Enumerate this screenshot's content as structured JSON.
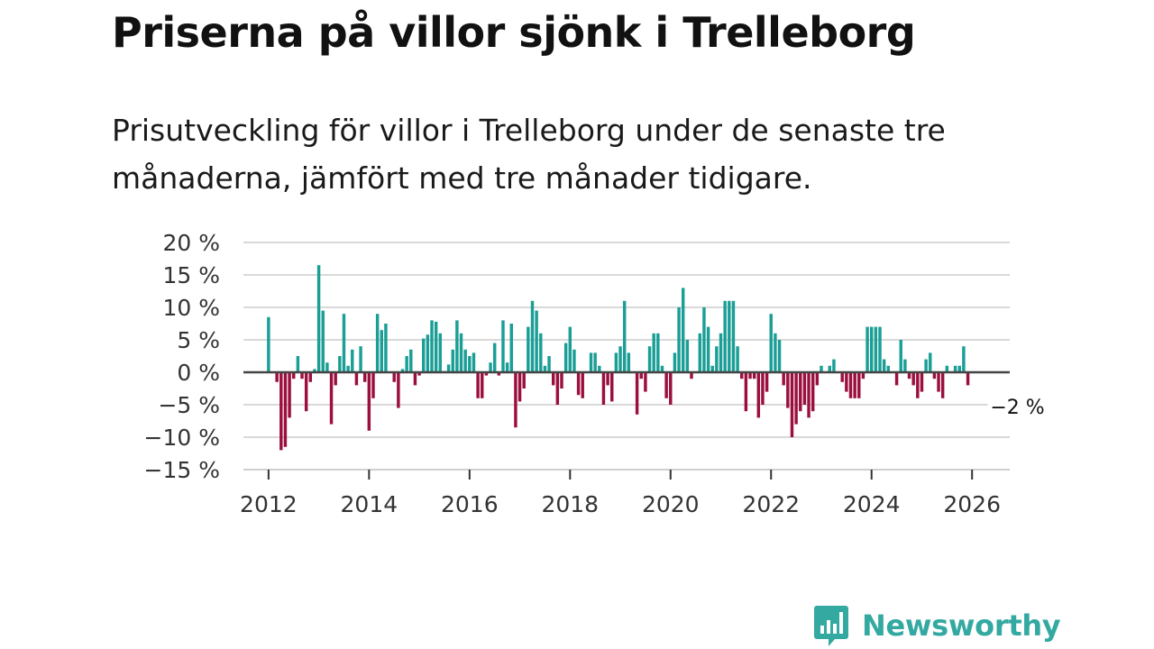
{
  "title": "Priserna på villor sjönk i Trelleborg",
  "subtitle": "Prisutveckling för villor i Trelleborg under de senaste tre månaderna, jämfört med tre månader tidigare.",
  "brand": {
    "name": "Newsworthy",
    "icon": "newsworthy-bar-chart-icon"
  },
  "chart_data": {
    "type": "bar",
    "title": "Priserna på villor sjönk i Trelleborg",
    "xlabel": "",
    "ylabel": "",
    "ylim": [
      -15,
      20
    ],
    "y_ticks": [
      20,
      15,
      10,
      5,
      0,
      -5,
      -10,
      -15
    ],
    "y_tick_labels": [
      "20 %",
      "15 %",
      "10 %",
      "5 %",
      "0 %",
      "−5 %",
      "−10 %",
      "−15 %"
    ],
    "x_range": [
      2011.5,
      2026.75
    ],
    "x_ticks": [
      2012,
      2014,
      2016,
      2018,
      2020,
      2022,
      2024,
      2026
    ],
    "x_tick_labels": [
      "2012",
      "2014",
      "2016",
      "2018",
      "2020",
      "2022",
      "2024",
      "2026"
    ],
    "grid": true,
    "colors": {
      "positive": "#1a9e96",
      "negative": "#9b0f3e",
      "zero_line": "#444444",
      "grid": "#d9d9d9"
    },
    "start": "2012-01",
    "interval": "month",
    "values": [
      8.5,
      0,
      -1.5,
      -12,
      -11.5,
      -7,
      -1,
      2.5,
      -1,
      -6,
      -1.5,
      0.5,
      16.5,
      9.5,
      1.5,
      -8,
      -2,
      2.5,
      9,
      1,
      3.5,
      -2,
      4,
      -1.5,
      -9,
      -4,
      9,
      6.5,
      7.5,
      0,
      -1.5,
      -5.5,
      0.5,
      2.5,
      3.5,
      -2,
      -0.5,
      5.2,
      5.8,
      8,
      7.8,
      6,
      0.2,
      1.2,
      3.5,
      8,
      6,
      3.5,
      2.5,
      3,
      -4,
      -4,
      -0.5,
      1.5,
      4.5,
      -0.5,
      8,
      1.5,
      7.5,
      -8.5,
      -4.5,
      -2.5,
      7,
      11,
      9.5,
      6,
      1,
      2.5,
      -2,
      -5,
      -2.5,
      4.5,
      7,
      3.5,
      -3.5,
      -4,
      0,
      3,
      3,
      1,
      -5,
      -2,
      -4.5,
      3,
      4,
      11,
      3,
      0,
      -6.5,
      -1,
      -3,
      4,
      6,
      6,
      1,
      -4,
      -5,
      3,
      10,
      13,
      5,
      -1,
      0,
      6,
      10,
      7,
      1,
      4,
      6,
      11,
      11,
      11,
      4,
      -1,
      -6,
      -1,
      -1,
      -7,
      -5,
      -3,
      9,
      6,
      5,
      -2,
      -5.5,
      -10,
      -8,
      -6,
      -5,
      -7,
      -6,
      -2,
      1,
      0,
      1,
      2,
      0,
      -1.5,
      -3,
      -4,
      -4,
      -4,
      -1,
      7,
      7,
      7,
      7,
      2,
      1,
      0,
      -2,
      5,
      2,
      -1,
      -2,
      -4,
      -3,
      2,
      3,
      -1,
      -3,
      -4,
      1,
      0,
      1,
      1,
      4,
      -2
    ],
    "annotation": {
      "text": "−2 %",
      "target": "last-bar",
      "position": "right"
    }
  }
}
